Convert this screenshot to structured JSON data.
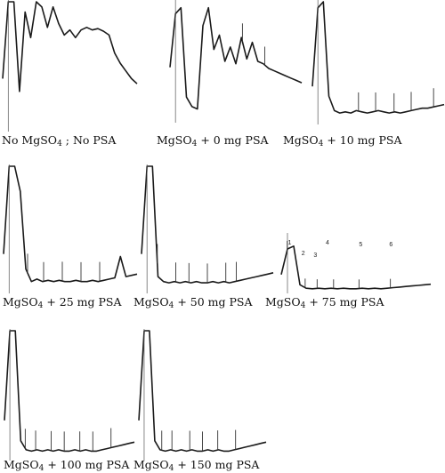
{
  "chart_data": [
    {
      "type": "line",
      "caption": {
        "pre": "No  MgSO",
        "sub": "4",
        "post": " ; No PSA"
      },
      "peak_labels": [],
      "series": [
        {
          "values": [
            0.4,
            1.0,
            1.0,
            0.3,
            0.92,
            0.72,
            1.0,
            0.96,
            0.8,
            0.96,
            0.83,
            0.74,
            0.78,
            0.72,
            0.78,
            0.8,
            0.78,
            0.79,
            0.77,
            0.74,
            0.6,
            0.52,
            0.46,
            0.4,
            0.36
          ]
        }
      ]
    },
    {
      "type": "line",
      "caption": {
        "pre": "MgSO",
        "sub": "4",
        "post": " + 0 mg PSA"
      },
      "peak_labels": [],
      "series": [
        {
          "values": [
            0.45,
            0.9,
            0.95,
            0.2,
            0.12,
            0.1,
            0.8,
            0.95,
            0.6,
            0.72,
            0.5,
            0.62,
            0.48,
            0.7,
            0.52,
            0.66,
            0.5,
            0.48,
            0.44,
            0.42,
            0.4,
            0.38,
            0.36,
            0.34,
            0.32
          ]
        }
      ]
    },
    {
      "type": "line",
      "caption": {
        "pre": "MgSO",
        "sub": "4",
        "post": " + 10 mg PSA"
      },
      "peak_labels": [],
      "series": [
        {
          "values": [
            0.3,
            0.95,
            1.0,
            0.22,
            0.1,
            0.08,
            0.09,
            0.08,
            0.1,
            0.09,
            0.08,
            0.09,
            0.1,
            0.09,
            0.08,
            0.09,
            0.08,
            0.09,
            0.1,
            0.11,
            0.12,
            0.12,
            0.13,
            0.14,
            0.15
          ]
        }
      ]
    },
    {
      "type": "line",
      "caption": {
        "pre": "MgSO",
        "sub": "4",
        "post": " + 25 mg PSA"
      },
      "peak_labels": [],
      "series": [
        {
          "values": [
            0.3,
            1.0,
            1.0,
            0.8,
            0.18,
            0.08,
            0.1,
            0.08,
            0.09,
            0.08,
            0.09,
            0.08,
            0.08,
            0.09,
            0.08,
            0.08,
            0.09,
            0.08,
            0.09,
            0.1,
            0.11,
            0.28,
            0.12,
            0.13,
            0.14
          ]
        }
      ]
    },
    {
      "type": "line",
      "caption": {
        "pre": "MgSO",
        "sub": "4",
        "post": " + 50 mg PSA"
      },
      "peak_labels": [],
      "series": [
        {
          "values": [
            0.3,
            1.0,
            1.0,
            0.12,
            0.08,
            0.07,
            0.08,
            0.07,
            0.08,
            0.07,
            0.08,
            0.07,
            0.07,
            0.08,
            0.07,
            0.08,
            0.07,
            0.08,
            0.09,
            0.1,
            0.11,
            0.12,
            0.13,
            0.14,
            0.15
          ]
        }
      ]
    },
    {
      "type": "line",
      "caption": {
        "pre": "MgSO",
        "sub": "4",
        "post": " + 75 mg PSA"
      },
      "peak_labels": [
        "1",
        "2",
        "3",
        "4",
        "5",
        "6"
      ],
      "series": [
        {
          "values": [
            0.3,
            0.75,
            0.8,
            0.12,
            0.06,
            0.05,
            0.06,
            0.05,
            0.06,
            0.05,
            0.06,
            0.05,
            0.05,
            0.06,
            0.05,
            0.06,
            0.05,
            0.06,
            0.07,
            0.08,
            0.09,
            0.1,
            0.11,
            0.12,
            0.13
          ]
        }
      ]
    },
    {
      "type": "line",
      "caption": {
        "pre": "MgSO",
        "sub": "4",
        "post": " + 100 mg PSA"
      },
      "peak_labels": [],
      "series": [
        {
          "values": [
            0.3,
            1.0,
            1.0,
            0.14,
            0.07,
            0.06,
            0.07,
            0.06,
            0.07,
            0.06,
            0.07,
            0.06,
            0.06,
            0.07,
            0.06,
            0.07,
            0.06,
            0.06,
            0.07,
            0.08,
            0.09,
            0.1,
            0.11,
            0.12,
            0.13
          ]
        }
      ]
    },
    {
      "type": "line",
      "caption": {
        "pre": "MgSO",
        "sub": "4",
        "post": " + 150 mg PSA"
      },
      "peak_labels": [],
      "series": [
        {
          "values": [
            0.3,
            1.0,
            1.0,
            0.14,
            0.07,
            0.06,
            0.07,
            0.06,
            0.07,
            0.06,
            0.07,
            0.06,
            0.06,
            0.07,
            0.06,
            0.07,
            0.06,
            0.06,
            0.07,
            0.08,
            0.09,
            0.1,
            0.11,
            0.12,
            0.13
          ]
        }
      ]
    }
  ]
}
